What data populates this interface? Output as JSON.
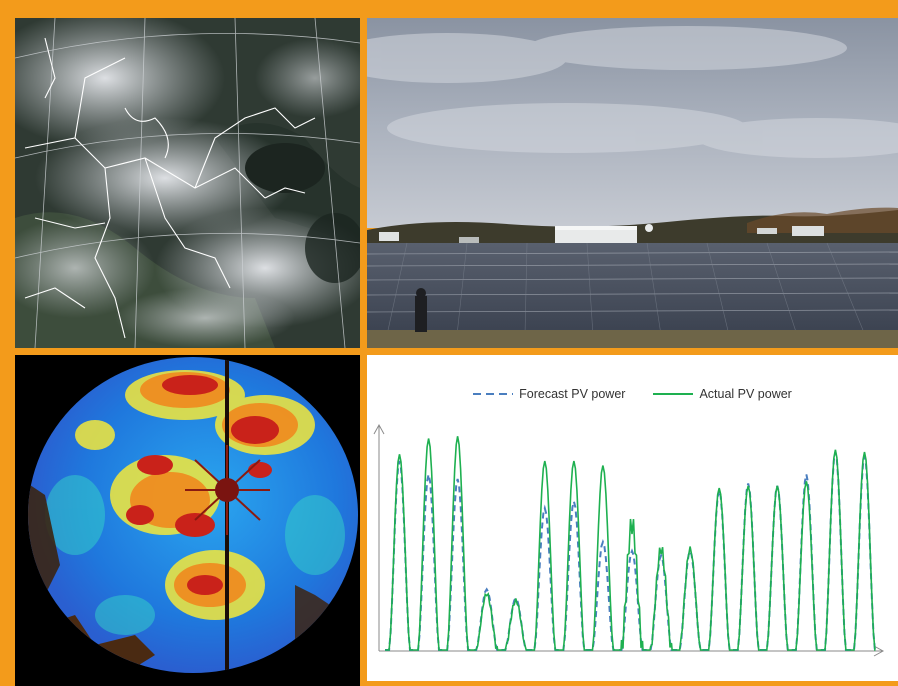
{
  "panels": {
    "satellite": "satellite-cloud-image",
    "solar_farm": "solar-farm-photo",
    "sky_camera": "all-sky-camera-image"
  },
  "colors": {
    "frame": "#f39b1b",
    "forecast": "#4a7ebf",
    "actual": "#1eb050"
  },
  "chart_data": {
    "type": "line",
    "title": "",
    "xlabel": "",
    "ylabel": "",
    "legend_position": "top-center",
    "grid": false,
    "series": [
      {
        "name": "Forecast PV power",
        "style": "dashed",
        "peaks": [
          0.84,
          0.78,
          0.76,
          0.27,
          0.23,
          0.63,
          0.66,
          0.48,
          0.44,
          0.42,
          0.44,
          0.71,
          0.74,
          0.73,
          0.78,
          0.88,
          0.86
        ]
      },
      {
        "name": "Actual PV power",
        "style": "solid",
        "peaks": [
          0.87,
          0.94,
          0.95,
          0.25,
          0.22,
          0.84,
          0.84,
          0.82,
          0.56,
          0.45,
          0.45,
          0.72,
          0.73,
          0.73,
          0.75,
          0.89,
          0.88
        ]
      }
    ]
  }
}
